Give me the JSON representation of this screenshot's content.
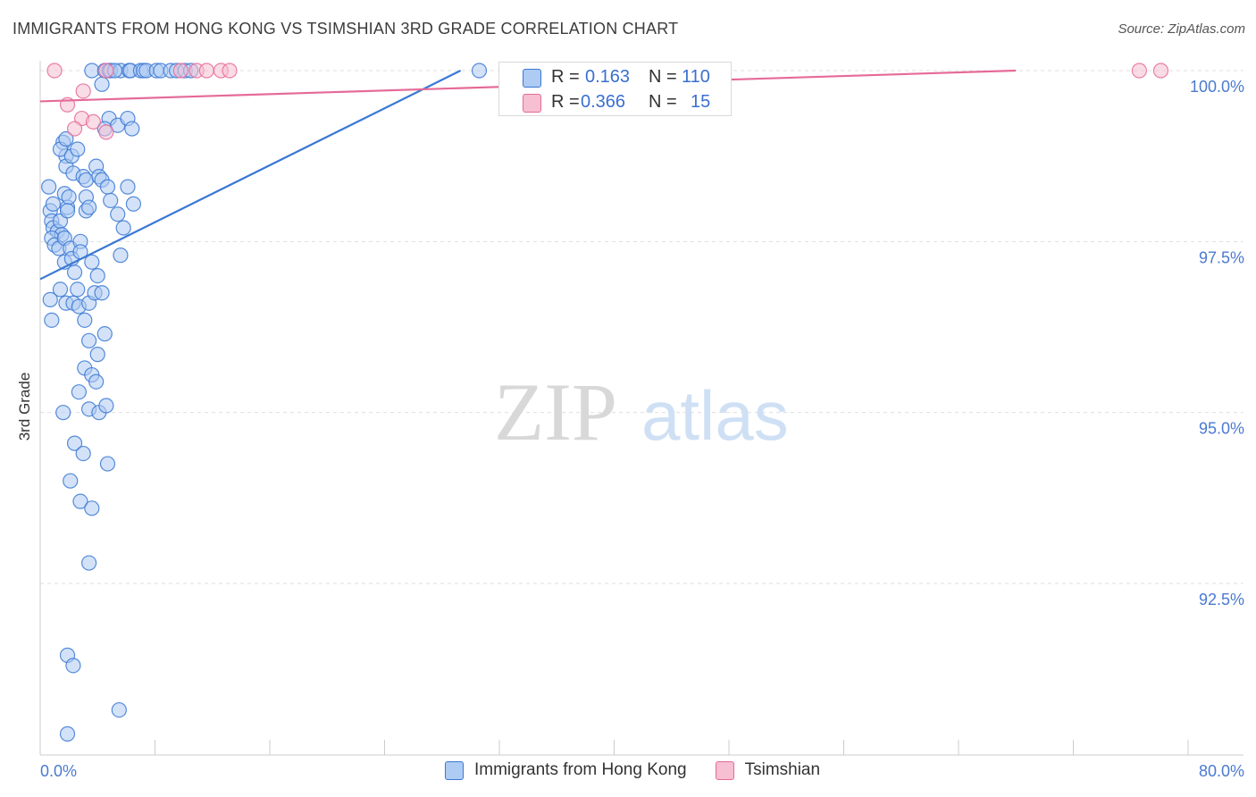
{
  "title": "IMMIGRANTS FROM HONG KONG VS TSIMSHIAN 3RD GRADE CORRELATION CHART",
  "source": "Source: ZipAtlas.com",
  "watermark": {
    "zip": "ZIP",
    "atlas": "atlas"
  },
  "colors": {
    "blue": "#3a78d4",
    "blue_fill": "#aecbf3",
    "pink": "#e56a98",
    "pink_fill": "#f6bfd2",
    "axis_text": "#4a7ad0",
    "grid": "#dedede"
  },
  "stats": {
    "blue": {
      "r_label": "R =",
      "r_value": "0.163",
      "n_label": "N =",
      "n_value": "110"
    },
    "pink": {
      "r_label": "R =",
      "r_value": "0.366",
      "n_label": "N =",
      "n_value": "15"
    }
  },
  "chart_data": {
    "type": "scatter",
    "title": "IMMIGRANTS FROM HONG KONG VS TSIMSHIAN 3RD GRADE CORRELATION CHART",
    "xlabel": "",
    "ylabel": "3rd Grade",
    "xlim": [
      0,
      80
    ],
    "ylim": [
      90.0,
      100.2
    ],
    "x_tick_labels": [
      "0.0%",
      "80.0%"
    ],
    "y_ticks": [
      92.5,
      95.0,
      97.5,
      100.0
    ],
    "y_tick_labels": [
      "92.5%",
      "95.0%",
      "97.5%",
      "100.0%"
    ],
    "grid": true,
    "legend_position": "bottom-center",
    "series": [
      {
        "name": "Immigrants from Hong Kong",
        "color": "#3a78d4",
        "trend": {
          "x": [
            0.0,
            29.3
          ],
          "y": [
            96.95,
            100.0
          ]
        },
        "points": [
          [
            3.6,
            100.0
          ],
          [
            4.5,
            100.0
          ],
          [
            4.8,
            100.0
          ],
          [
            4.9,
            100.0
          ],
          [
            5.6,
            100.0
          ],
          [
            5.2,
            100.0
          ],
          [
            6.2,
            100.0
          ],
          [
            6.3,
            100.0
          ],
          [
            7.0,
            100.0
          ],
          [
            7.2,
            100.0
          ],
          [
            7.4,
            100.0
          ],
          [
            8.1,
            100.0
          ],
          [
            8.4,
            100.0
          ],
          [
            9.1,
            100.0
          ],
          [
            9.5,
            100.0
          ],
          [
            10.1,
            100.0
          ],
          [
            10.5,
            100.0
          ],
          [
            30.6,
            100.0
          ],
          [
            4.3,
            99.8
          ],
          [
            4.8,
            99.3
          ],
          [
            4.5,
            99.15
          ],
          [
            5.4,
            99.2
          ],
          [
            6.1,
            99.3
          ],
          [
            6.4,
            99.15
          ],
          [
            1.6,
            98.95
          ],
          [
            1.8,
            98.75
          ],
          [
            1.4,
            98.85
          ],
          [
            1.8,
            99.0
          ],
          [
            1.8,
            98.6
          ],
          [
            2.2,
            98.75
          ],
          [
            2.6,
            98.85
          ],
          [
            2.3,
            98.5
          ],
          [
            3.0,
            98.45
          ],
          [
            3.2,
            98.4
          ],
          [
            3.9,
            98.6
          ],
          [
            4.1,
            98.45
          ],
          [
            4.3,
            98.4
          ],
          [
            1.7,
            98.2
          ],
          [
            1.9,
            98.0
          ],
          [
            2.0,
            98.15
          ],
          [
            3.2,
            98.15
          ],
          [
            3.2,
            97.95
          ],
          [
            3.4,
            98.0
          ],
          [
            4.7,
            98.3
          ],
          [
            4.9,
            98.1
          ],
          [
            6.1,
            98.3
          ],
          [
            6.5,
            98.05
          ],
          [
            5.4,
            97.9
          ],
          [
            5.8,
            97.7
          ],
          [
            0.6,
            98.3
          ],
          [
            0.7,
            97.95
          ],
          [
            0.9,
            98.05
          ],
          [
            0.8,
            97.8
          ],
          [
            0.9,
            97.7
          ],
          [
            1.2,
            97.65
          ],
          [
            1.4,
            97.8
          ],
          [
            1.5,
            97.6
          ],
          [
            1.9,
            97.95
          ],
          [
            0.8,
            97.55
          ],
          [
            1.0,
            97.45
          ],
          [
            1.3,
            97.4
          ],
          [
            1.7,
            97.55
          ],
          [
            2.1,
            97.4
          ],
          [
            2.8,
            97.5
          ],
          [
            1.7,
            97.2
          ],
          [
            2.2,
            97.25
          ],
          [
            2.4,
            97.05
          ],
          [
            2.8,
            97.35
          ],
          [
            3.6,
            97.2
          ],
          [
            4.0,
            97.0
          ],
          [
            5.6,
            97.3
          ],
          [
            1.4,
            96.8
          ],
          [
            1.8,
            96.6
          ],
          [
            2.3,
            96.6
          ],
          [
            2.6,
            96.8
          ],
          [
            2.7,
            96.55
          ],
          [
            3.1,
            96.35
          ],
          [
            3.4,
            96.6
          ],
          [
            3.8,
            96.75
          ],
          [
            4.3,
            96.75
          ],
          [
            0.7,
            96.65
          ],
          [
            0.8,
            96.35
          ],
          [
            4.5,
            96.15
          ],
          [
            3.4,
            96.05
          ],
          [
            4.0,
            95.85
          ],
          [
            3.1,
            95.65
          ],
          [
            3.6,
            95.55
          ],
          [
            3.9,
            95.45
          ],
          [
            2.7,
            95.3
          ],
          [
            3.4,
            95.05
          ],
          [
            4.1,
            95.0
          ],
          [
            4.6,
            95.1
          ],
          [
            1.6,
            95.0
          ],
          [
            2.4,
            94.55
          ],
          [
            3.0,
            94.4
          ],
          [
            4.7,
            94.25
          ],
          [
            2.1,
            94.0
          ],
          [
            2.8,
            93.7
          ],
          [
            3.6,
            93.6
          ],
          [
            3.4,
            92.8
          ],
          [
            1.9,
            91.45
          ],
          [
            2.3,
            91.3
          ],
          [
            5.5,
            90.65
          ],
          [
            1.9,
            90.3
          ]
        ]
      },
      {
        "name": "Tsimshian",
        "color": "#e56a98",
        "trend": {
          "x": [
            0.0,
            68.0
          ],
          "y": [
            99.55,
            100.0
          ]
        },
        "points": [
          [
            1.0,
            100.0
          ],
          [
            4.6,
            100.0
          ],
          [
            9.8,
            100.0
          ],
          [
            10.9,
            100.0
          ],
          [
            11.6,
            100.0
          ],
          [
            12.6,
            100.0
          ],
          [
            13.2,
            100.0
          ],
          [
            76.6,
            100.0
          ],
          [
            78.1,
            100.0
          ],
          [
            3.0,
            99.7
          ],
          [
            1.9,
            99.5
          ],
          [
            2.9,
            99.3
          ],
          [
            2.4,
            99.15
          ],
          [
            3.7,
            99.25
          ],
          [
            4.6,
            99.1
          ]
        ]
      }
    ]
  }
}
